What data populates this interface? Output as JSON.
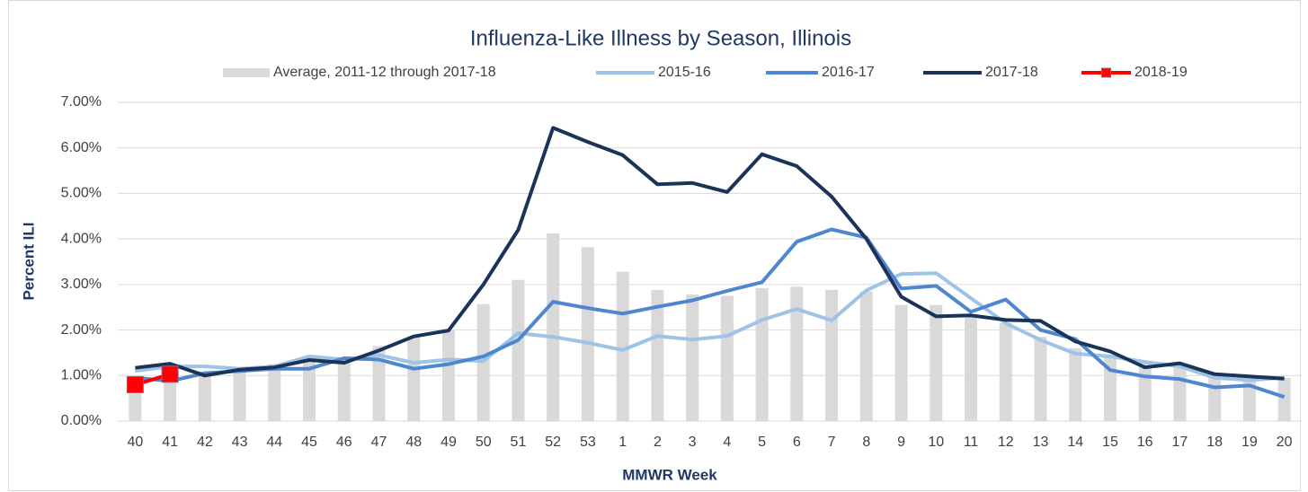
{
  "chart_data": {
    "type": "line",
    "title": "Influenza-Like Illness by Season, Illinois",
    "x_label": "MMWR Week",
    "y_label": "Percent ILI",
    "categories": [
      "40",
      "41",
      "42",
      "43",
      "44",
      "45",
      "46",
      "47",
      "48",
      "49",
      "50",
      "51",
      "52",
      "53",
      "1",
      "2",
      "3",
      "4",
      "5",
      "6",
      "7",
      "8",
      "9",
      "10",
      "11",
      "12",
      "13",
      "14",
      "15",
      "16",
      "17",
      "18",
      "19",
      "20"
    ],
    "ylim": [
      0,
      7
    ],
    "yticks": [
      {
        "value": 0,
        "label": "0.00%"
      },
      {
        "value": 1,
        "label": "1.00%"
      },
      {
        "value": 2,
        "label": "2.00%"
      },
      {
        "value": 3,
        "label": "3.00%"
      },
      {
        "value": 4,
        "label": "4.00%"
      },
      {
        "value": 5,
        "label": "5.00%"
      },
      {
        "value": 6,
        "label": "6.00%"
      },
      {
        "value": 7,
        "label": "7.00%"
      }
    ],
    "grid": true,
    "legend": "top",
    "series": [
      {
        "name": "Average, 2011-12 through 2017-18",
        "type": "bar",
        "color": "#d9d9d9",
        "values": [
          0.95,
          1.05,
          1.1,
          1.15,
          1.25,
          1.3,
          1.4,
          1.65,
          1.85,
          2.0,
          2.57,
          3.1,
          4.12,
          3.82,
          3.28,
          2.88,
          2.78,
          2.75,
          2.92,
          2.95,
          2.88,
          2.85,
          2.55,
          2.55,
          2.35,
          2.15,
          1.85,
          1.6,
          1.4,
          1.3,
          1.2,
          1.05,
          0.95,
          0.95
        ]
      },
      {
        "name": "2015-16",
        "type": "line",
        "color": "#9dc3e6",
        "values": [
          1.1,
          1.2,
          1.2,
          1.15,
          1.2,
          1.42,
          1.35,
          1.45,
          1.28,
          1.35,
          1.32,
          1.93,
          1.85,
          1.72,
          1.56,
          1.87,
          1.79,
          1.87,
          2.22,
          2.46,
          2.21,
          2.87,
          3.23,
          3.25,
          2.7,
          2.15,
          1.78,
          1.48,
          1.42,
          1.3,
          1.2,
          0.95,
          0.9,
          0.95
        ]
      },
      {
        "name": "2016-17",
        "type": "line",
        "color": "#4e86cf",
        "values": [
          0.95,
          0.88,
          1.05,
          1.1,
          1.15,
          1.15,
          1.38,
          1.35,
          1.15,
          1.25,
          1.42,
          1.78,
          2.62,
          2.48,
          2.36,
          2.51,
          2.65,
          2.86,
          3.05,
          3.94,
          4.21,
          4.03,
          2.91,
          2.97,
          2.4,
          2.67,
          2.0,
          1.8,
          1.12,
          0.98,
          0.92,
          0.74,
          0.78,
          0.53
        ]
      },
      {
        "name": "2017-18",
        "type": "line",
        "color": "#1b3358",
        "values": [
          1.17,
          1.26,
          1.0,
          1.13,
          1.18,
          1.34,
          1.28,
          1.55,
          1.86,
          1.99,
          3.0,
          4.2,
          6.44,
          6.13,
          5.84,
          5.2,
          5.23,
          5.03,
          5.86,
          5.6,
          4.93,
          4.0,
          2.73,
          2.3,
          2.32,
          2.22,
          2.2,
          1.75,
          1.53,
          1.18,
          1.27,
          1.03,
          0.98,
          0.93
        ]
      },
      {
        "name": "2018-19",
        "type": "line",
        "color": "#ff0000",
        "marker": "square",
        "values": [
          0.8,
          1.03,
          null,
          null,
          null,
          null,
          null,
          null,
          null,
          null,
          null,
          null,
          null,
          null,
          null,
          null,
          null,
          null,
          null,
          null,
          null,
          null,
          null,
          null,
          null,
          null,
          null,
          null,
          null,
          null,
          null,
          null,
          null,
          null
        ]
      }
    ]
  }
}
